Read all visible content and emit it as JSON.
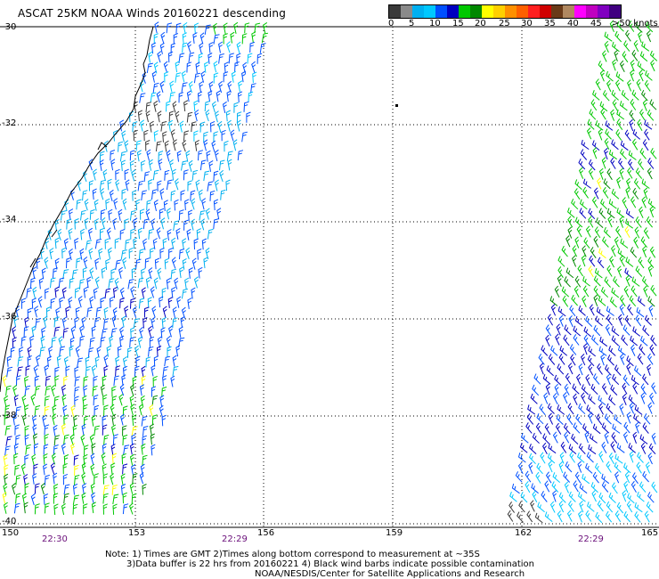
{
  "title": "ASCAT 25KM NOAA Winds 20160221 descending",
  "legend": {
    "colors": [
      "#3a3a3a",
      "#8a8a8a",
      "#00b0f0",
      "#00c8ff",
      "#0050ff",
      "#0000c0",
      "#00c800",
      "#008800",
      "#ffff00",
      "#ffd000",
      "#ff9000",
      "#ff6000",
      "#ff2020",
      "#d00000",
      "#6a3a18",
      "#b08860",
      "#ff00ff",
      "#c000c0",
      "#8000c0",
      "#400080"
    ],
    "labels": [
      "0",
      "5",
      "10",
      "15",
      "20",
      "25",
      "30",
      "35",
      "40",
      "45",
      ">50 knots"
    ]
  },
  "axes": {
    "lat_labels": [
      "-30",
      "-32",
      "-34",
      "-36",
      "-38",
      "-40"
    ],
    "lon_labels": [
      "150",
      "153",
      "156",
      "159",
      "162",
      "165"
    ]
  },
  "times": [
    "22:30",
    "22:29",
    "22:29"
  ],
  "notes": [
    "Note: 1) Times are GMT 2)Times along bottom correspond to measurement at ~35S",
    "3)Data buffer is 22 hrs from 20160221 4) Black wind barbs indicate possible contamination",
    "NOAA/NESDIS/Center for Satellite Applications and Research"
  ]
}
